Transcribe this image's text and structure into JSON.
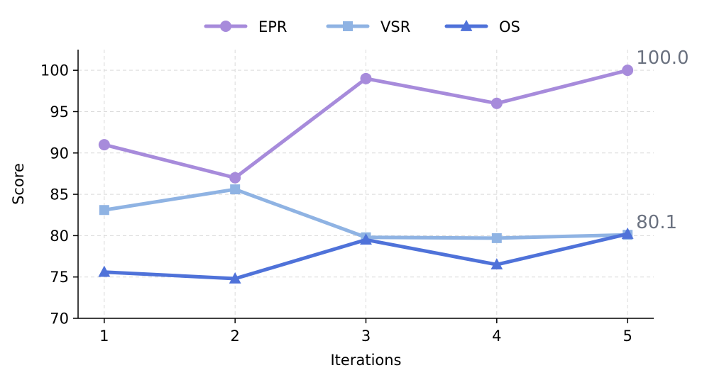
{
  "chart_data": {
    "type": "line",
    "title": "",
    "xlabel": "Iterations",
    "ylabel": "Score",
    "categories": [
      "1",
      "2",
      "3",
      "4",
      "5"
    ],
    "x": [
      1,
      2,
      3,
      4,
      5
    ],
    "xlim": [
      0.8,
      5.2
    ],
    "ylim": [
      70,
      102.5
    ],
    "yticks": [
      70,
      75,
      80,
      85,
      90,
      95,
      100
    ],
    "grid": true,
    "legend_position": "top-center",
    "series": [
      {
        "name": "EPR",
        "marker": "circle",
        "color": "#a78bdb",
        "values": [
          91.0,
          87.0,
          99.0,
          96.0,
          100.0
        ]
      },
      {
        "name": "VSR",
        "marker": "square",
        "color": "#8fb3e3",
        "values": [
          83.1,
          85.6,
          79.8,
          79.7,
          80.1
        ]
      },
      {
        "name": "OS",
        "marker": "triangle",
        "color": "#4f72d9",
        "values": [
          75.6,
          74.8,
          79.5,
          76.5,
          80.2
        ]
      }
    ],
    "annotations": [
      {
        "text": "100.0",
        "series": "EPR",
        "x": 5,
        "y": 100.0
      },
      {
        "text": "80.1",
        "series": "VSR",
        "x": 5,
        "y": 80.1
      }
    ]
  }
}
